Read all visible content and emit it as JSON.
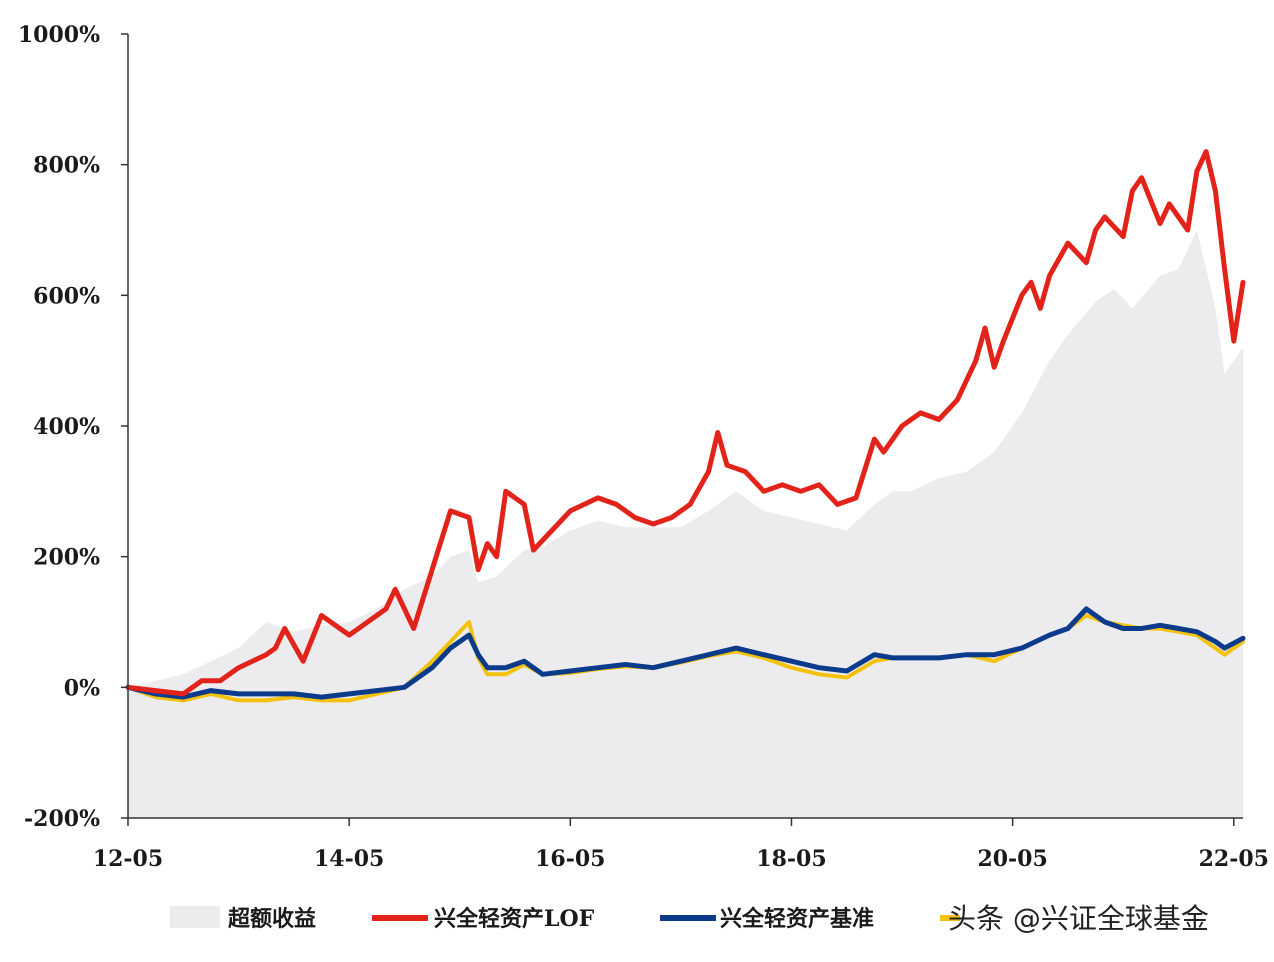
{
  "chart_data": {
    "type": "line",
    "x_tick_labels": [
      "12-05",
      "14-05",
      "16-05",
      "18-05",
      "20-05",
      "22-05"
    ],
    "x_range": [
      "2012-05",
      "2022-06"
    ],
    "y_tick_labels": [
      "1000%",
      "800%",
      "600%",
      "400%",
      "200%",
      "0%",
      "-200%"
    ],
    "ylim": [
      -200,
      1000
    ],
    "y_unit": "%",
    "grid": false,
    "legend_position": "bottom",
    "series": [
      {
        "name": "超额收益",
        "kind": "area",
        "color": "#ececee",
        "x": [
          "2012-05",
          "2012-08",
          "2012-11",
          "2013-02",
          "2013-05",
          "2013-08",
          "2013-11",
          "2014-02",
          "2014-05",
          "2014-08",
          "2014-11",
          "2015-02",
          "2015-04",
          "2015-06",
          "2015-07",
          "2015-09",
          "2015-12",
          "2016-02",
          "2016-05",
          "2016-08",
          "2016-11",
          "2017-02",
          "2017-05",
          "2017-08",
          "2017-11",
          "2018-02",
          "2018-05",
          "2018-08",
          "2018-11",
          "2019-02",
          "2019-04",
          "2019-06",
          "2019-09",
          "2019-12",
          "2020-03",
          "2020-06",
          "2020-09",
          "2020-11",
          "2021-02",
          "2021-04",
          "2021-06",
          "2021-09",
          "2021-11",
          "2022-01",
          "2022-03",
          "2022-04",
          "2022-06"
        ],
        "values": [
          0,
          10,
          20,
          40,
          60,
          100,
          85,
          95,
          100,
          120,
          150,
          170,
          200,
          210,
          160,
          170,
          210,
          215,
          240,
          255,
          245,
          245,
          245,
          270,
          300,
          270,
          260,
          250,
          240,
          280,
          300,
          300,
          320,
          330,
          360,
          420,
          500,
          540,
          590,
          610,
          580,
          630,
          640,
          700,
          580,
          480,
          520
        ]
      },
      {
        "name": "兴全轻资产LOF",
        "kind": "line",
        "color": "#e2231a",
        "x": [
          "2012-05",
          "2012-08",
          "2012-11",
          "2013-01",
          "2013-03",
          "2013-05",
          "2013-08",
          "2013-09",
          "2013-10",
          "2013-12",
          "2014-02",
          "2014-05",
          "2014-07",
          "2014-09",
          "2014-10",
          "2014-12",
          "2015-02",
          "2015-04",
          "2015-06",
          "2015-07",
          "2015-08",
          "2015-09",
          "2015-10",
          "2015-12",
          "2016-01",
          "2016-03",
          "2016-05",
          "2016-08",
          "2016-10",
          "2016-12",
          "2017-02",
          "2017-04",
          "2017-06",
          "2017-08",
          "2017-09",
          "2017-10",
          "2017-12",
          "2018-02",
          "2018-04",
          "2018-06",
          "2018-08",
          "2018-10",
          "2018-12",
          "2019-02",
          "2019-03",
          "2019-05",
          "2019-07",
          "2019-09",
          "2019-11",
          "2020-01",
          "2020-02",
          "2020-03",
          "2020-04",
          "2020-06",
          "2020-07",
          "2020-08",
          "2020-09",
          "2020-11",
          "2021-01",
          "2021-02",
          "2021-03",
          "2021-05",
          "2021-06",
          "2021-07",
          "2021-09",
          "2021-10",
          "2021-12",
          "2022-01",
          "2022-02",
          "2022-03",
          "2022-04",
          "2022-05",
          "2022-06"
        ],
        "values": [
          0,
          -5,
          -10,
          10,
          10,
          30,
          50,
          60,
          90,
          40,
          110,
          80,
          100,
          120,
          150,
          90,
          180,
          270,
          260,
          180,
          220,
          200,
          300,
          280,
          210,
          240,
          270,
          290,
          280,
          260,
          250,
          260,
          280,
          330,
          390,
          340,
          330,
          300,
          310,
          300,
          310,
          280,
          290,
          380,
          360,
          400,
          420,
          410,
          440,
          500,
          550,
          490,
          530,
          600,
          620,
          580,
          630,
          680,
          650,
          700,
          720,
          690,
          760,
          780,
          710,
          740,
          700,
          790,
          820,
          760,
          640,
          530,
          620
        ]
      },
      {
        "name": "兴全轻资产基准",
        "kind": "line",
        "color": "#0d3b8c",
        "x": [
          "2012-05",
          "2012-08",
          "2012-11",
          "2013-02",
          "2013-05",
          "2013-08",
          "2013-11",
          "2014-02",
          "2014-05",
          "2014-08",
          "2014-11",
          "2015-02",
          "2015-04",
          "2015-06",
          "2015-07",
          "2015-08",
          "2015-10",
          "2015-12",
          "2016-02",
          "2016-05",
          "2016-08",
          "2016-11",
          "2017-02",
          "2017-05",
          "2017-08",
          "2017-11",
          "2018-02",
          "2018-05",
          "2018-08",
          "2018-11",
          "2019-02",
          "2019-04",
          "2019-06",
          "2019-09",
          "2019-12",
          "2020-03",
          "2020-06",
          "2020-09",
          "2020-11",
          "2021-01",
          "2021-03",
          "2021-05",
          "2021-07",
          "2021-09",
          "2021-11",
          "2022-01",
          "2022-03",
          "2022-04",
          "2022-06"
        ],
        "values": [
          0,
          -10,
          -15,
          -5,
          -10,
          -10,
          -10,
          -15,
          -10,
          -5,
          0,
          30,
          60,
          80,
          50,
          30,
          30,
          40,
          20,
          25,
          30,
          35,
          30,
          40,
          50,
          60,
          50,
          40,
          30,
          25,
          50,
          45,
          45,
          45,
          50,
          50,
          60,
          80,
          90,
          120,
          100,
          90,
          90,
          95,
          90,
          85,
          70,
          60,
          75
        ]
      },
      {
        "name": "",
        "kind": "line",
        "color": "#f4c20d",
        "x": [
          "2012-05",
          "2012-08",
          "2012-11",
          "2013-02",
          "2013-05",
          "2013-08",
          "2013-11",
          "2014-02",
          "2014-05",
          "2014-08",
          "2014-11",
          "2015-02",
          "2015-04",
          "2015-06",
          "2015-07",
          "2015-08",
          "2015-10",
          "2015-12",
          "2016-02",
          "2016-05",
          "2016-08",
          "2016-11",
          "2017-02",
          "2017-05",
          "2017-08",
          "2017-11",
          "2018-02",
          "2018-05",
          "2018-08",
          "2018-11",
          "2019-02",
          "2019-04",
          "2019-06",
          "2019-09",
          "2019-12",
          "2020-03",
          "2020-06",
          "2020-09",
          "2020-11",
          "2021-01",
          "2021-03",
          "2021-05",
          "2021-07",
          "2021-09",
          "2021-11",
          "2022-01",
          "2022-03",
          "2022-04",
          "2022-06"
        ],
        "values": [
          0,
          -15,
          -20,
          -10,
          -20,
          -20,
          -15,
          -20,
          -20,
          -10,
          0,
          40,
          70,
          100,
          45,
          20,
          20,
          35,
          20,
          22,
          28,
          32,
          30,
          38,
          48,
          55,
          45,
          30,
          20,
          15,
          40,
          45,
          45,
          45,
          50,
          40,
          60,
          80,
          90,
          110,
          100,
          95,
          90,
          90,
          85,
          80,
          60,
          50,
          70
        ]
      }
    ]
  },
  "legend": {
    "items": [
      "超额收益",
      "兴全轻资产LOF",
      "兴全轻资产基准"
    ]
  },
  "watermark": "头条 @兴证全球基金"
}
